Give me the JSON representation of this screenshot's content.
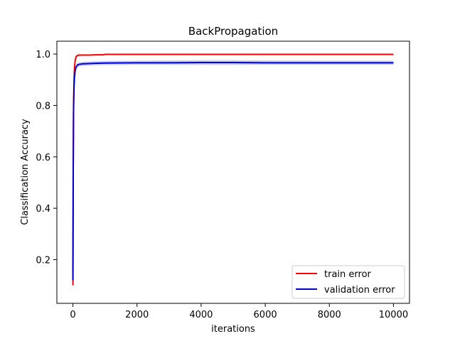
{
  "chart_data": {
    "type": "line",
    "title": "BackPropagation",
    "xlabel": "iterations",
    "ylabel": "Classification Accuracy",
    "xlim": [
      -500,
      10500
    ],
    "ylim": [
      0.03,
      1.05
    ],
    "xticks": [
      0,
      2000,
      4000,
      6000,
      8000,
      10000
    ],
    "yticks": [
      0.2,
      0.4,
      0.6,
      0.8,
      1.0
    ],
    "xtick_labels": [
      "0",
      "2000",
      "4000",
      "6000",
      "8000",
      "10000"
    ],
    "ytick_labels": [
      "0.2",
      "0.4",
      "0.6",
      "0.8",
      "1.0"
    ],
    "legend_position": "lower-right",
    "series": [
      {
        "name": "train error",
        "color": "#ff0000",
        "band_color": "#ff9999",
        "x": [
          0,
          10,
          20,
          35,
          50,
          70,
          100,
          150,
          200,
          300,
          500,
          700,
          950,
          1000,
          2000,
          4000,
          6000,
          8000,
          10000
        ],
        "y": [
          0.1,
          0.55,
          0.8,
          0.9,
          0.95,
          0.975,
          0.99,
          0.995,
          0.996,
          0.996,
          0.996,
          0.997,
          0.997,
          0.999,
          0.999,
          0.999,
          0.999,
          0.999,
          0.999
        ],
        "lower": [
          0.075,
          0.5,
          0.77,
          0.88,
          0.935,
          0.965,
          0.985,
          0.99,
          0.993,
          0.993,
          0.993,
          0.994,
          0.994,
          0.997,
          0.997,
          0.997,
          0.997,
          0.997,
          0.997
        ],
        "upper": [
          0.125,
          0.6,
          0.83,
          0.92,
          0.965,
          0.985,
          0.995,
          0.998,
          0.999,
          0.999,
          0.999,
          0.999,
          0.999,
          1.0,
          1.0,
          1.0,
          1.0,
          1.0,
          1.0
        ]
      },
      {
        "name": "validation error",
        "color": "#0000cc",
        "band_color": "#9aa0ff",
        "x": [
          0,
          10,
          20,
          35,
          50,
          70,
          100,
          150,
          200,
          300,
          500,
          700,
          1000,
          2000,
          3000,
          4000,
          5000,
          6000,
          7000,
          8000,
          9000,
          10000
        ],
        "y": [
          0.12,
          0.55,
          0.78,
          0.87,
          0.91,
          0.935,
          0.95,
          0.958,
          0.96,
          0.962,
          0.963,
          0.964,
          0.965,
          0.966,
          0.966,
          0.967,
          0.967,
          0.966,
          0.966,
          0.966,
          0.966,
          0.966
        ],
        "lower": [
          0.1,
          0.5,
          0.75,
          0.85,
          0.895,
          0.92,
          0.94,
          0.948,
          0.952,
          0.954,
          0.955,
          0.956,
          0.957,
          0.958,
          0.958,
          0.958,
          0.958,
          0.958,
          0.958,
          0.958,
          0.958,
          0.958
        ],
        "upper": [
          0.14,
          0.6,
          0.81,
          0.89,
          0.925,
          0.948,
          0.96,
          0.966,
          0.968,
          0.97,
          0.971,
          0.972,
          0.973,
          0.974,
          0.975,
          0.976,
          0.976,
          0.975,
          0.975,
          0.974,
          0.974,
          0.974
        ]
      }
    ]
  }
}
